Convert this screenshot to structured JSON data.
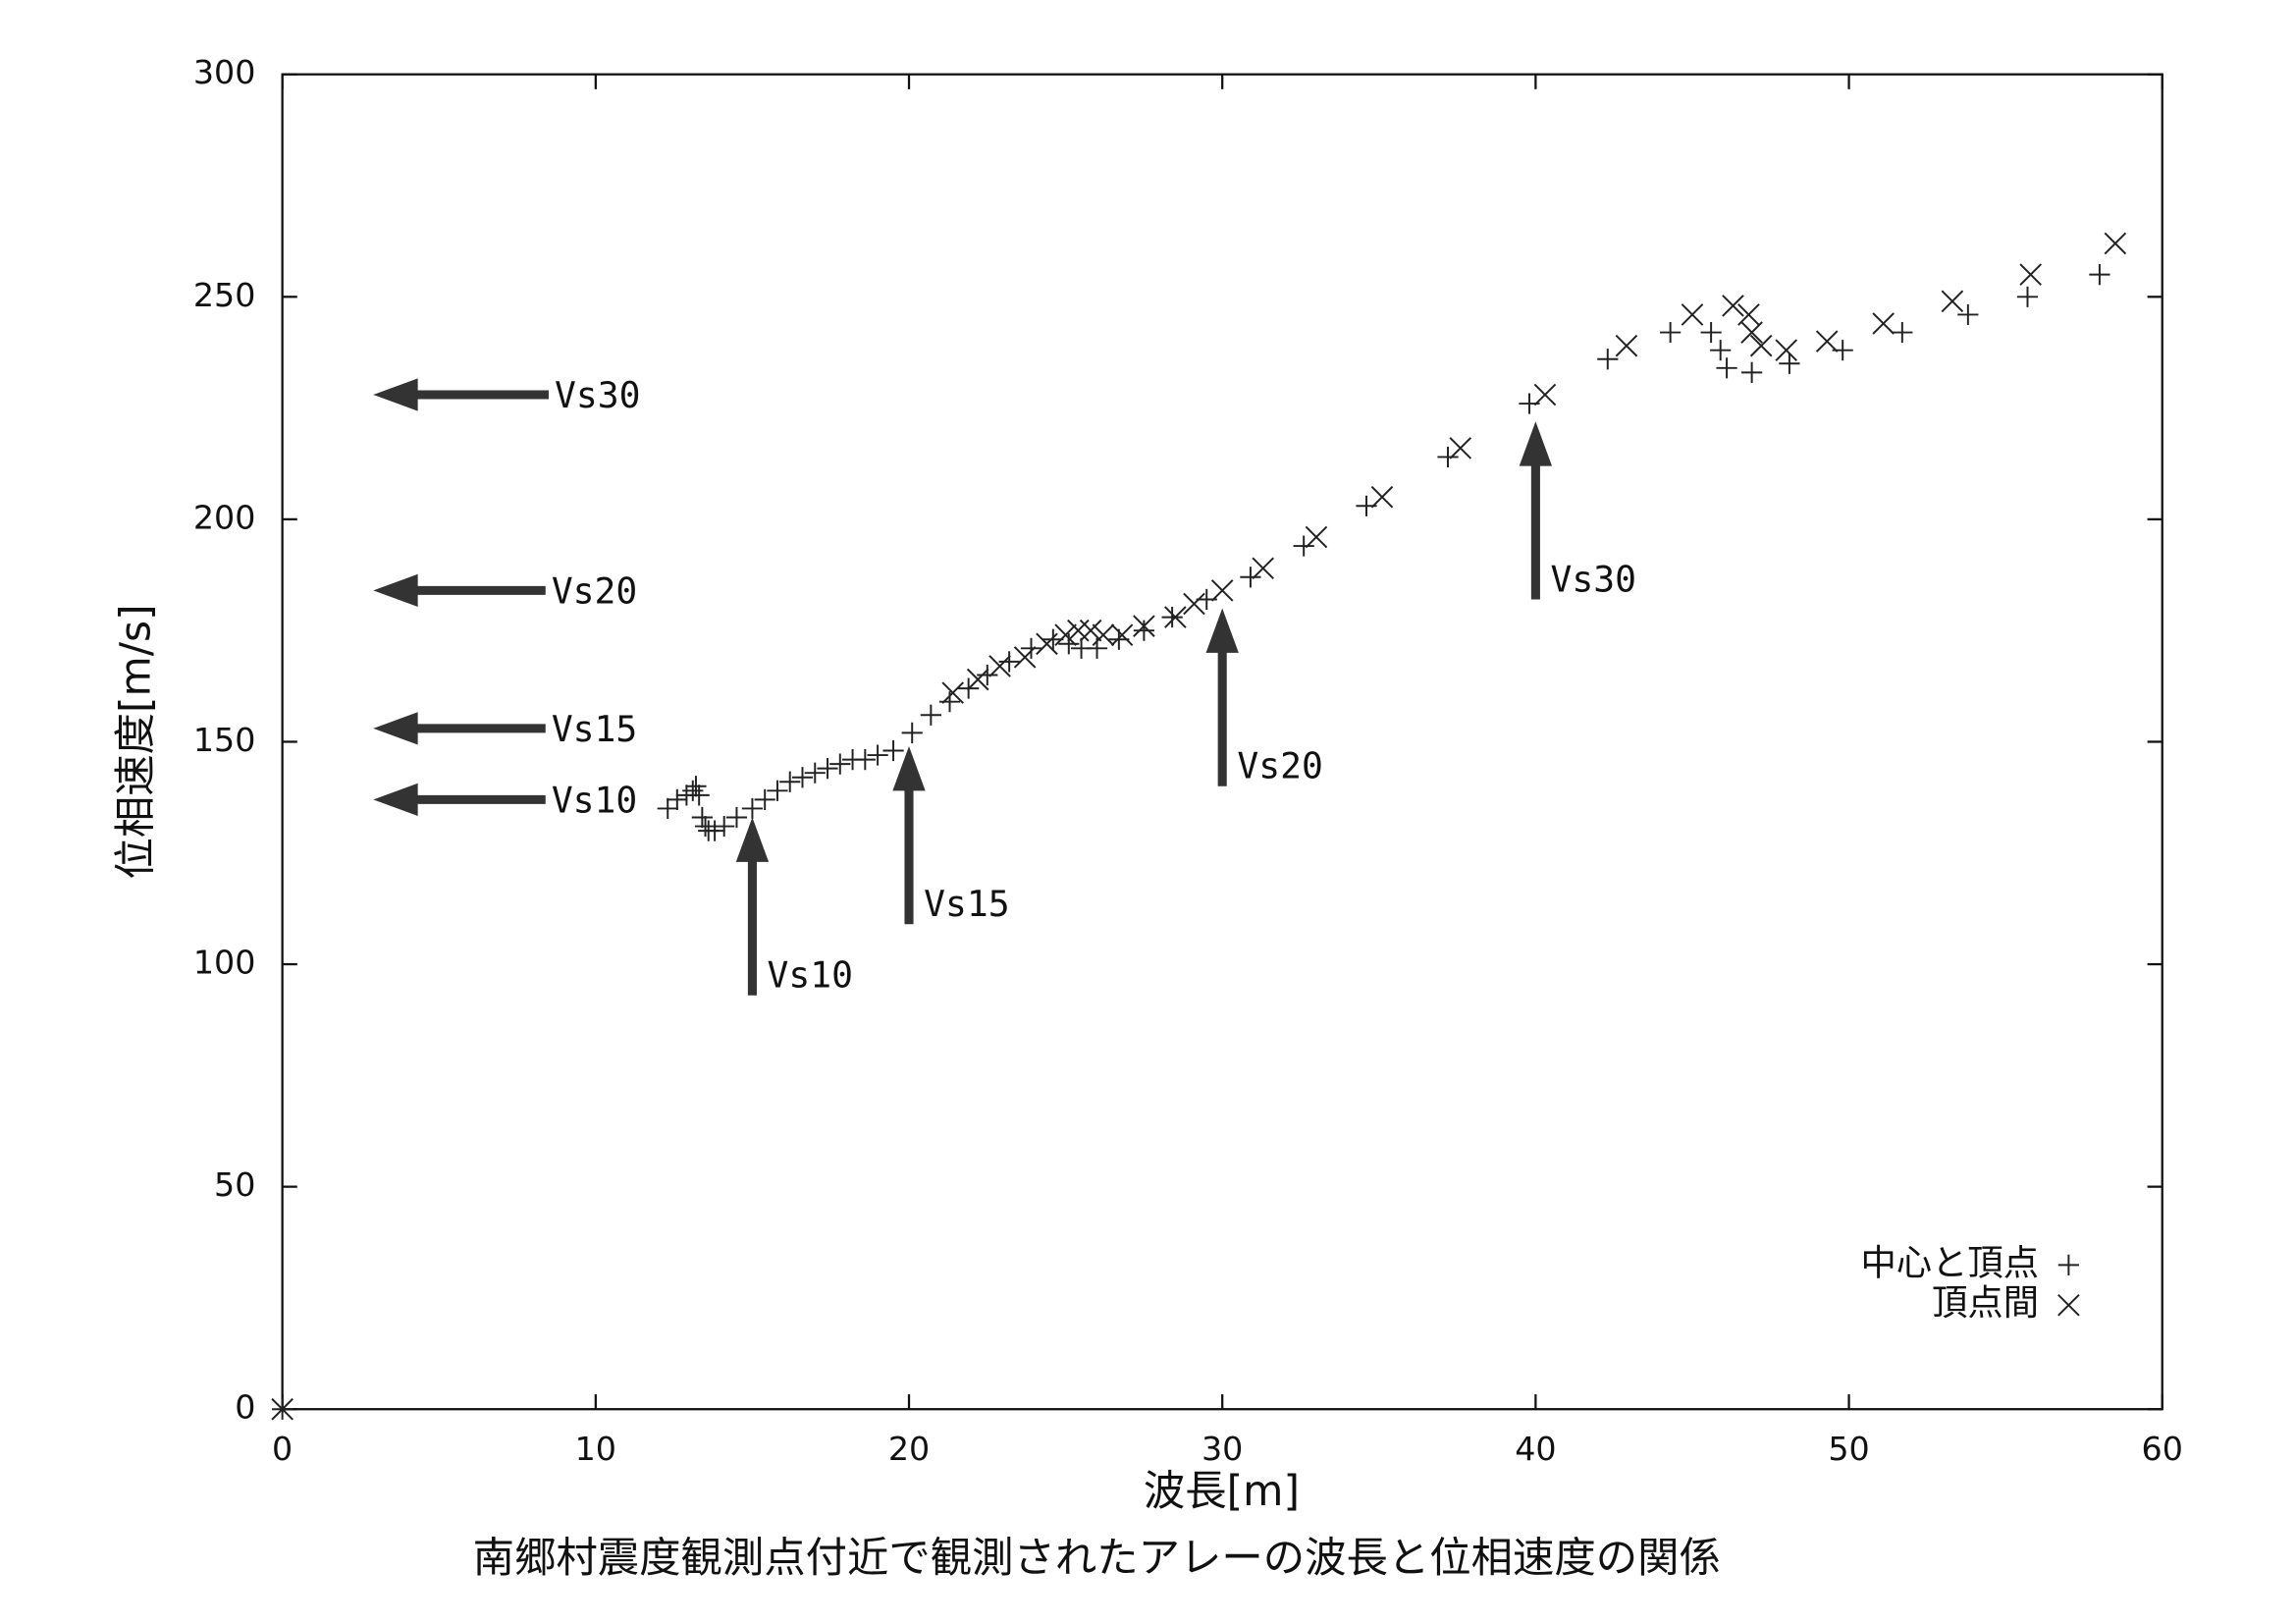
{
  "chart_data": {
    "type": "scatter",
    "caption": "南郷村震度観測点付近で観測されたアレーの波長と位相速度の関係",
    "x_label": "波長[m]",
    "y_label": "位相速度[m/s]",
    "xlim": [
      0,
      60
    ],
    "ylim": [
      0,
      300
    ],
    "xticks": [
      0,
      10,
      20,
      30,
      40,
      50,
      60
    ],
    "yticks": [
      0,
      50,
      100,
      150,
      200,
      250,
      300
    ],
    "legend": "lower right",
    "series": [
      {
        "name": "中心と頂点",
        "marker": "+",
        "color": "#222222",
        "x": [
          0,
          12.3,
          12.6,
          12.9,
          13.1,
          13.2,
          13.3,
          13.4,
          13.5,
          13.6,
          13.8,
          14.1,
          14.5,
          15,
          15.4,
          15.8,
          16.2,
          16.6,
          17,
          17.4,
          17.8,
          18.2,
          18.6,
          19,
          19.5,
          20.1,
          20.7,
          21.3,
          21.9,
          22.5,
          23.2,
          23.9,
          24.6,
          25.1,
          25.5,
          26,
          26.7,
          27.5,
          28.4,
          29.5,
          30.9,
          32.6,
          34.6,
          37.2,
          39.8,
          42.3,
          44.3,
          45.6,
          45.9,
          46.1,
          46.9,
          48.1,
          49.8,
          51.7,
          53.8,
          55.7,
          58
        ],
        "values": [
          0,
          135,
          137,
          138,
          139,
          140,
          138,
          133,
          131,
          130,
          130,
          131,
          133,
          135,
          137,
          139,
          141,
          142,
          143,
          144,
          145,
          146,
          146,
          147,
          148,
          152,
          156,
          159,
          162,
          165,
          168,
          171,
          173,
          172,
          171,
          171,
          173,
          175,
          178,
          182,
          187,
          194,
          203,
          214,
          226,
          236,
          242,
          242,
          238,
          234,
          233,
          235,
          238,
          242,
          246,
          250,
          255
        ]
      },
      {
        "name": "頂点間",
        "marker": "x",
        "color": "#222222",
        "x": [
          0,
          21.4,
          22.2,
          22.9,
          23.7,
          24.4,
          25,
          25.4,
          25.8,
          26.2,
          26.8,
          27.5,
          28.5,
          29.1,
          30,
          31.3,
          33,
          35.1,
          37.6,
          40.3,
          42.9,
          45,
          46.3,
          46.8,
          46.9,
          47.2,
          48,
          49.3,
          51.1,
          53.3,
          55.8,
          58.5
        ],
        "values": [
          0,
          161,
          164,
          167,
          169,
          172,
          174,
          175,
          175,
          174,
          174,
          176,
          178,
          181,
          184,
          189,
          196,
          205,
          216,
          228,
          239,
          246,
          248,
          246,
          242,
          239,
          238,
          240,
          244,
          249,
          255,
          262
        ]
      }
    ],
    "h_arrows": [
      {
        "text": "Vs30",
        "y": 228,
        "x_head": 2.9,
        "x_tail": 8.5
      },
      {
        "text": "Vs20",
        "y": 184,
        "x_head": 2.9,
        "x_tail": 8.4
      },
      {
        "text": "Vs15",
        "y": 153,
        "x_head": 2.9,
        "x_tail": 8.4
      },
      {
        "text": "Vs10",
        "y": 137,
        "x_head": 2.9,
        "x_tail": 8.4
      }
    ],
    "v_arrows": [
      {
        "text": "Vs10",
        "x": 15,
        "y_head": 133,
        "y_tail": 93
      },
      {
        "text": "Vs15",
        "x": 20,
        "y_head": 149,
        "y_tail": 109
      },
      {
        "text": "Vs20",
        "x": 30,
        "y_head": 180,
        "y_tail": 140
      },
      {
        "text": "Vs30",
        "x": 40,
        "y_head": 222,
        "y_tail": 182
      }
    ]
  }
}
